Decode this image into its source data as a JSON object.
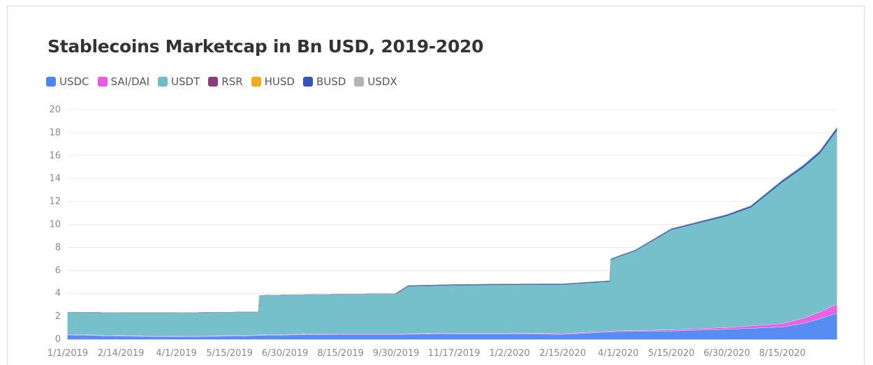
{
  "chart_data": {
    "type": "area",
    "title": "Stablecoins Marketcap in Bn USD, 2019-2020",
    "xlabel": "",
    "ylabel": "",
    "ylim": [
      0,
      20
    ],
    "y_ticks": [
      "0",
      "2",
      "4",
      "6",
      "8",
      "10",
      "12",
      "14",
      "16",
      "18",
      "20"
    ],
    "y_tick_values": [
      0,
      2,
      4,
      6,
      8,
      10,
      12,
      14,
      16,
      18,
      20
    ],
    "x_ticks": [
      "1/1/2019",
      "2/14/2019",
      "4/1/2019",
      "5/15/2019",
      "6/30/2019",
      "8/15/2019",
      "9/30/2019",
      "11/17/2019",
      "1/2/2020",
      "2/15/2020",
      "4/1/2020",
      "5/15/2020",
      "6/30/2020",
      "8/15/2020"
    ],
    "xlim": [
      "1/1/2019",
      "9/29/2020"
    ],
    "legend_position": "top-left",
    "stacked": true,
    "grid": true,
    "series": [
      {
        "name": "USDC",
        "color": "#4e86f0",
        "points": [
          [
            "1/1/2019",
            0.4
          ],
          [
            "2/14/2019",
            0.3
          ],
          [
            "4/1/2019",
            0.25
          ],
          [
            "5/15/2019",
            0.3
          ],
          [
            "6/30/2019",
            0.4
          ],
          [
            "8/15/2019",
            0.45
          ],
          [
            "9/30/2019",
            0.45
          ],
          [
            "11/17/2019",
            0.5
          ],
          [
            "1/2/2020",
            0.5
          ],
          [
            "2/15/2020",
            0.45
          ],
          [
            "4/1/2020",
            0.7
          ],
          [
            "5/15/2020",
            0.75
          ],
          [
            "6/30/2020",
            0.9
          ],
          [
            "8/15/2020",
            1.1
          ],
          [
            "9/1/2020",
            1.4
          ],
          [
            "9/15/2020",
            1.8
          ],
          [
            "9/29/2020",
            2.3
          ]
        ]
      },
      {
        "name": "SAI/DAI",
        "color": "#e65be0",
        "points": [
          [
            "1/1/2019",
            0.05
          ],
          [
            "2/14/2019",
            0.05
          ],
          [
            "4/1/2019",
            0.05
          ],
          [
            "5/15/2019",
            0.05
          ],
          [
            "6/30/2019",
            0.05
          ],
          [
            "8/15/2019",
            0.06
          ],
          [
            "9/30/2019",
            0.06
          ],
          [
            "11/17/2019",
            0.06
          ],
          [
            "1/2/2020",
            0.06
          ],
          [
            "2/15/2020",
            0.07
          ],
          [
            "4/1/2020",
            0.08
          ],
          [
            "5/15/2020",
            0.1
          ],
          [
            "6/30/2020",
            0.15
          ],
          [
            "8/15/2020",
            0.3
          ],
          [
            "9/1/2020",
            0.45
          ],
          [
            "9/15/2020",
            0.6
          ],
          [
            "9/29/2020",
            0.8
          ]
        ]
      },
      {
        "name": "USDT",
        "color": "#6fbdc9",
        "points": [
          [
            "1/1/2019",
            1.9
          ],
          [
            "2/14/2019",
            1.95
          ],
          [
            "4/1/2019",
            2.0
          ],
          [
            "5/15/2019",
            2.0
          ],
          [
            "6/8/2019",
            1.95
          ],
          [
            "6/9/2019",
            3.4
          ],
          [
            "8/15/2019",
            3.4
          ],
          [
            "9/30/2019",
            3.45
          ],
          [
            "10/10/2019",
            4.1
          ],
          [
            "11/17/2019",
            4.15
          ],
          [
            "1/2/2020",
            4.2
          ],
          [
            "2/15/2020",
            4.25
          ],
          [
            "3/25/2020",
            4.3
          ],
          [
            "3/26/2020",
            6.2
          ],
          [
            "4/15/2020",
            6.9
          ],
          [
            "5/15/2020",
            8.7
          ],
          [
            "6/30/2020",
            9.7
          ],
          [
            "7/20/2020",
            10.3
          ],
          [
            "8/15/2020",
            12.3
          ],
          [
            "9/1/2020",
            13.1
          ],
          [
            "9/15/2020",
            13.8
          ],
          [
            "9/29/2020",
            15.1
          ]
        ]
      },
      {
        "name": "RSR",
        "color": "#8b3a7e",
        "points": [
          [
            "1/1/2019",
            0
          ],
          [
            "9/29/2020",
            0
          ]
        ]
      },
      {
        "name": "HUSD",
        "color": "#f0ac1c",
        "points": [
          [
            "1/1/2019",
            0
          ],
          [
            "9/29/2020",
            0
          ]
        ]
      },
      {
        "name": "BUSD",
        "color": "#2f55b8",
        "points": [
          [
            "1/1/2019",
            0
          ],
          [
            "9/29/2019",
            0
          ],
          [
            "10/1/2019",
            0.05
          ],
          [
            "4/1/2020",
            0.05
          ],
          [
            "6/30/2020",
            0.1
          ],
          [
            "8/15/2020",
            0.15
          ],
          [
            "9/29/2020",
            0.2
          ]
        ]
      },
      {
        "name": "USDX",
        "color": "#b4b4b4",
        "points": [
          [
            "1/1/2019",
            0
          ],
          [
            "9/29/2020",
            0
          ]
        ]
      }
    ]
  }
}
